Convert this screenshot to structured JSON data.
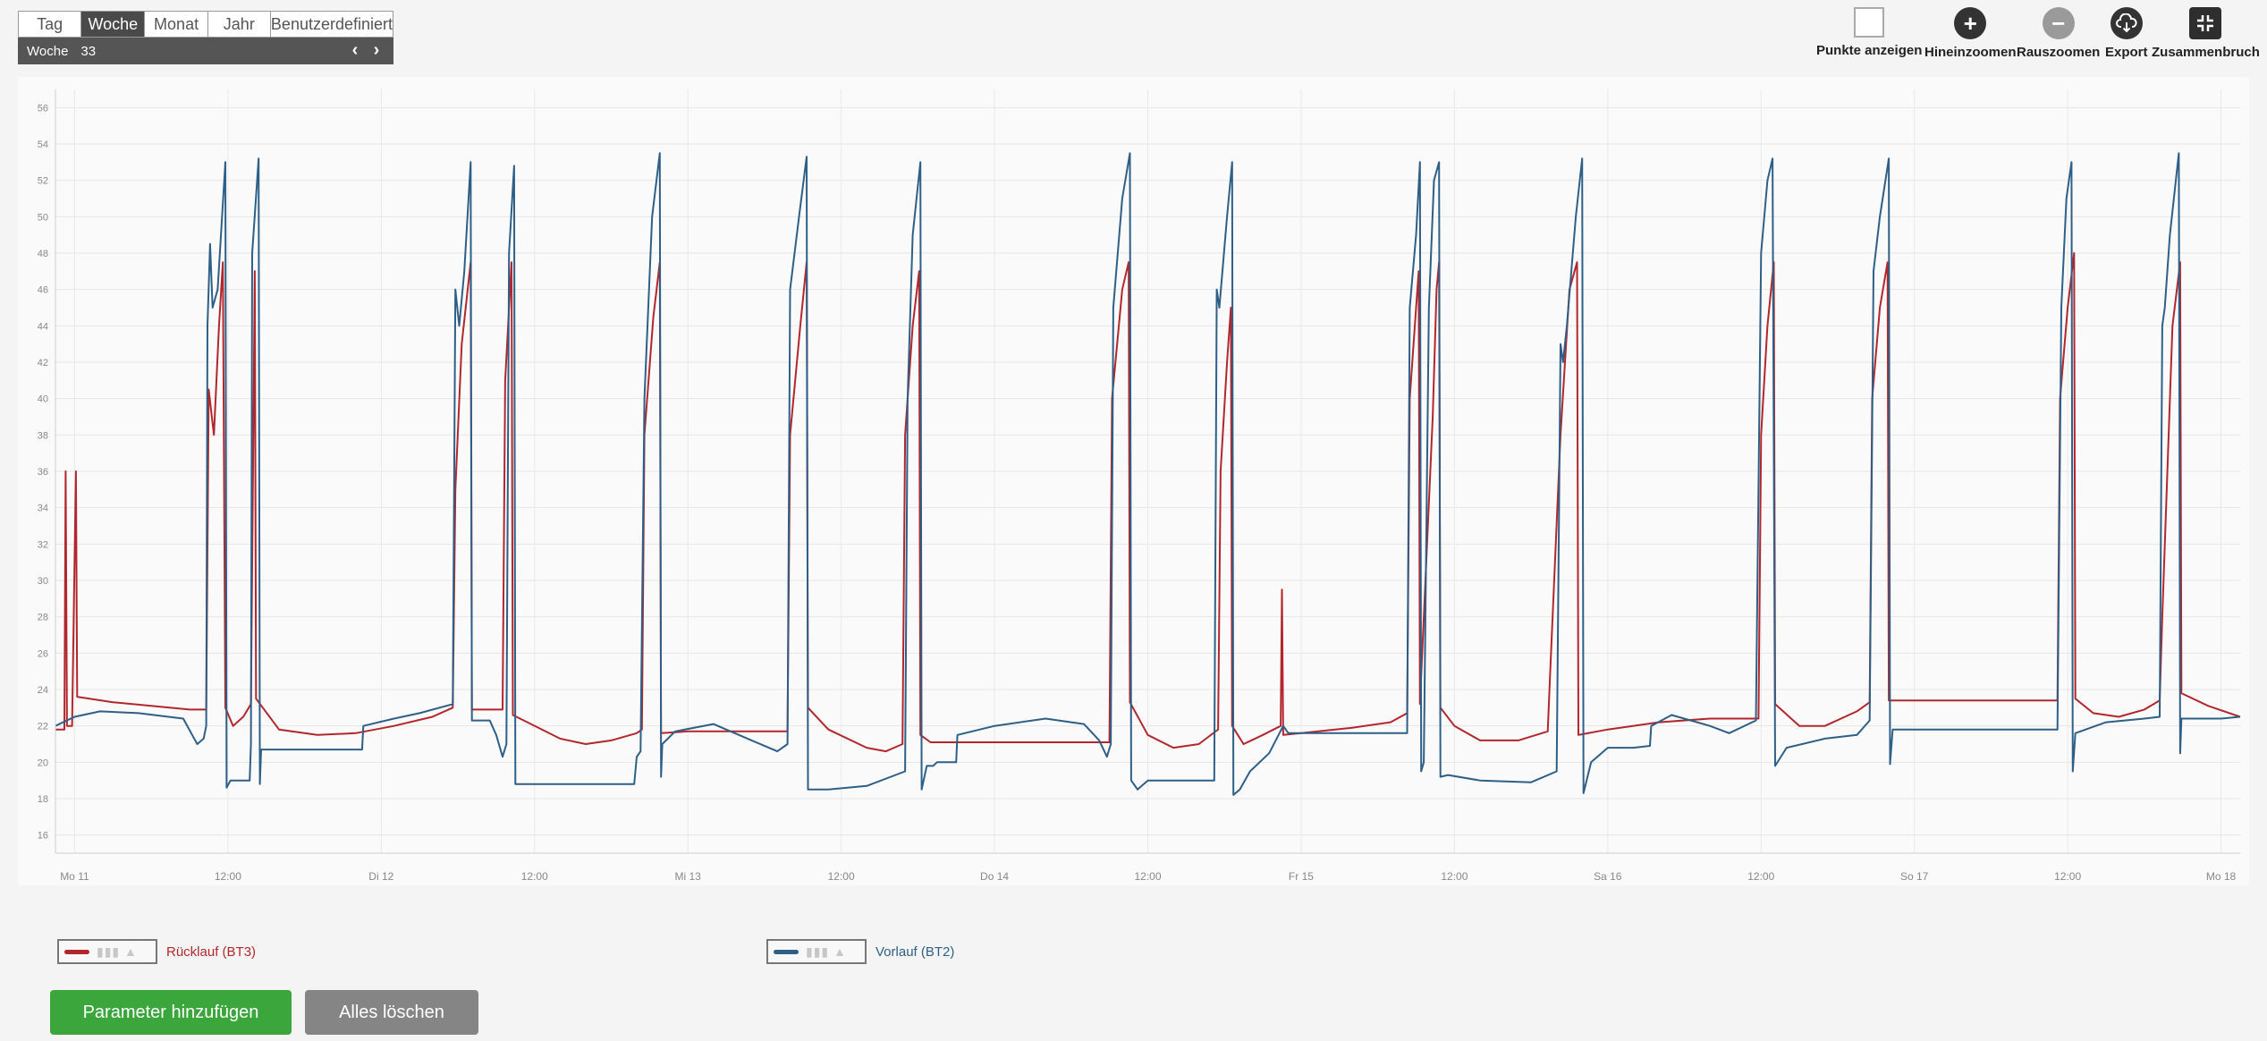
{
  "period": {
    "tabs": [
      "Tag",
      "Woche",
      "Monat",
      "Jahr",
      "Benutzerdefiniert"
    ],
    "active_tab": "Woche",
    "week_label": "Woche",
    "week_number": "33"
  },
  "toolbar": {
    "show_points": "Punkte anzeigen",
    "zoom_in": "Hineinzoomen",
    "zoom_out": "Rauszoomen",
    "export": "Export",
    "collapse": "Zusammenbruch"
  },
  "buttons": {
    "add_param": "Parameter hinzufügen",
    "clear_all": "Alles löschen"
  },
  "colors": {
    "ruecklauf": "#b2272d",
    "vorlauf": "#2e5f86",
    "active_tab": "#4a4a4a",
    "add_button": "#3aa63c",
    "clear_button": "#858585"
  },
  "chart_data": {
    "type": "line",
    "x_unit": "hours since Mo 11 00:00",
    "xlim": [
      -1.5,
      169.5
    ],
    "ylim": [
      15,
      57
    ],
    "yticks": [
      16,
      18,
      20,
      22,
      24,
      26,
      28,
      30,
      32,
      34,
      36,
      38,
      40,
      42,
      44,
      46,
      48,
      50,
      52,
      54,
      56
    ],
    "xticks": [
      {
        "x": 0,
        "label": "Mo 11"
      },
      {
        "x": 12,
        "label": "12:00"
      },
      {
        "x": 24,
        "label": "Di 12"
      },
      {
        "x": 36,
        "label": "12:00"
      },
      {
        "x": 48,
        "label": "Mi 13"
      },
      {
        "x": 60,
        "label": "12:00"
      },
      {
        "x": 72,
        "label": "Do 14"
      },
      {
        "x": 84,
        "label": "12:00"
      },
      {
        "x": 96,
        "label": "Fr 15"
      },
      {
        "x": 108,
        "label": "12:00"
      },
      {
        "x": 120,
        "label": "Sa 16"
      },
      {
        "x": 132,
        "label": "12:00"
      },
      {
        "x": 144,
        "label": "So 17"
      },
      {
        "x": 156,
        "label": "12:00"
      },
      {
        "x": 168,
        "label": "Mo 18"
      }
    ],
    "grid": true,
    "legend_position": "bottom",
    "series": [
      {
        "name": "Rücklauf (BT3)",
        "color": "#b2272d",
        "points": [
          [
            -1.5,
            21.8
          ],
          [
            -0.8,
            21.8
          ],
          [
            -0.7,
            36
          ],
          [
            -0.6,
            22
          ],
          [
            -0.2,
            22
          ],
          [
            0.1,
            36
          ],
          [
            0.2,
            23.6
          ],
          [
            3,
            23.3
          ],
          [
            6,
            23.1
          ],
          [
            9,
            22.9
          ],
          [
            10.3,
            22.9
          ],
          [
            10.5,
            40.5
          ],
          [
            10.9,
            38
          ],
          [
            11.3,
            44
          ],
          [
            11.6,
            47.5
          ],
          [
            11.8,
            23
          ],
          [
            12.4,
            22
          ],
          [
            13.2,
            22.5
          ],
          [
            13.8,
            23.2
          ],
          [
            14.1,
            47
          ],
          [
            14.2,
            23.5
          ],
          [
            16,
            21.8
          ],
          [
            19,
            21.5
          ],
          [
            22,
            21.6
          ],
          [
            25,
            22
          ],
          [
            28,
            22.5
          ],
          [
            29.6,
            23
          ],
          [
            29.8,
            35
          ],
          [
            30.3,
            43
          ],
          [
            31,
            47.5
          ],
          [
            31.1,
            22.9
          ],
          [
            33.5,
            22.9
          ],
          [
            33.7,
            41
          ],
          [
            34.2,
            47.5
          ],
          [
            34.3,
            22.6
          ],
          [
            38,
            21.3
          ],
          [
            40,
            21
          ],
          [
            42,
            21.2
          ],
          [
            44,
            21.6
          ],
          [
            44.4,
            21.8
          ],
          [
            44.6,
            38
          ],
          [
            45.3,
            44.5
          ],
          [
            45.8,
            47.5
          ],
          [
            45.9,
            21.6
          ],
          [
            48,
            21.7
          ],
          [
            52,
            21.7
          ],
          [
            55.8,
            21.7
          ],
          [
            56,
            38
          ],
          [
            56.8,
            44
          ],
          [
            57.3,
            47.5
          ],
          [
            57.4,
            23
          ],
          [
            59,
            21.8
          ],
          [
            62,
            20.8
          ],
          [
            63.5,
            20.6
          ],
          [
            64.8,
            21
          ],
          [
            65,
            38
          ],
          [
            65.6,
            44
          ],
          [
            66.1,
            47
          ],
          [
            66.2,
            21.5
          ],
          [
            67,
            21.1
          ],
          [
            75,
            21.1
          ],
          [
            81,
            21.1
          ],
          [
            81.2,
            40
          ],
          [
            82,
            46
          ],
          [
            82.5,
            47.5
          ],
          [
            82.6,
            23.3
          ],
          [
            84,
            21.5
          ],
          [
            86,
            20.8
          ],
          [
            88,
            21
          ],
          [
            89.5,
            21.8
          ],
          [
            89.7,
            36
          ],
          [
            90.2,
            42
          ],
          [
            90.5,
            45
          ],
          [
            90.6,
            22
          ],
          [
            91.5,
            21
          ],
          [
            93,
            21.5
          ],
          [
            94.4,
            22
          ],
          [
            94.5,
            29.5
          ],
          [
            94.6,
            21.5
          ],
          [
            96,
            21.6
          ],
          [
            100,
            21.9
          ],
          [
            103,
            22.2
          ],
          [
            104.3,
            22.7
          ],
          [
            104.5,
            40
          ],
          [
            105,
            45
          ],
          [
            105.2,
            47
          ],
          [
            105.3,
            23.2
          ],
          [
            106.3,
            39
          ],
          [
            106.6,
            46
          ],
          [
            106.8,
            47.5
          ],
          [
            106.9,
            23
          ],
          [
            108,
            22
          ],
          [
            110,
            21.2
          ],
          [
            113,
            21.2
          ],
          [
            115.3,
            21.7
          ],
          [
            115.5,
            25
          ],
          [
            116.3,
            38
          ],
          [
            117,
            46
          ],
          [
            117.6,
            47.5
          ],
          [
            117.7,
            21.5
          ],
          [
            120,
            21.8
          ],
          [
            124,
            22.2
          ],
          [
            128,
            22.4
          ],
          [
            131.8,
            22.4
          ],
          [
            132,
            38
          ],
          [
            132.5,
            44
          ],
          [
            133,
            47.5
          ],
          [
            133.1,
            23.2
          ],
          [
            135,
            22
          ],
          [
            137,
            22
          ],
          [
            139.5,
            22.8
          ],
          [
            140.5,
            23.3
          ],
          [
            140.7,
            40
          ],
          [
            141.3,
            45
          ],
          [
            141.9,
            47.5
          ],
          [
            142,
            23.4
          ],
          [
            148,
            23.4
          ],
          [
            155.2,
            23.4
          ],
          [
            155.4,
            40
          ],
          [
            156,
            45
          ],
          [
            156.5,
            48
          ],
          [
            156.6,
            23.5
          ],
          [
            158,
            22.7
          ],
          [
            160,
            22.5
          ],
          [
            162,
            22.9
          ],
          [
            163.2,
            23.4
          ],
          [
            163.4,
            28
          ],
          [
            164.2,
            44
          ],
          [
            164.8,
            47.5
          ],
          [
            164.9,
            23.8
          ],
          [
            167,
            23.1
          ],
          [
            169.5,
            22.5
          ]
        ]
      },
      {
        "name": "Vorlauf (BT2)",
        "color": "#2e5f86",
        "points": [
          [
            -1.5,
            22
          ],
          [
            0,
            22.5
          ],
          [
            2,
            22.8
          ],
          [
            5,
            22.7
          ],
          [
            8.5,
            22.4
          ],
          [
            9.2,
            21.5
          ],
          [
            9.6,
            21
          ],
          [
            10.1,
            21.3
          ],
          [
            10.3,
            22
          ],
          [
            10.4,
            44
          ],
          [
            10.6,
            48.5
          ],
          [
            10.8,
            45
          ],
          [
            11.2,
            46
          ],
          [
            11.8,
            53
          ],
          [
            11.9,
            18.6
          ],
          [
            12.2,
            19
          ],
          [
            13.7,
            19
          ],
          [
            13.8,
            21
          ],
          [
            13.9,
            48
          ],
          [
            14.4,
            53.2
          ],
          [
            14.5,
            18.8
          ],
          [
            14.6,
            20.7
          ],
          [
            20,
            20.7
          ],
          [
            22.5,
            20.7
          ],
          [
            22.6,
            22
          ],
          [
            25,
            22.4
          ],
          [
            27,
            22.7
          ],
          [
            29.6,
            23.2
          ],
          [
            29.8,
            46
          ],
          [
            30.1,
            44
          ],
          [
            30.5,
            47
          ],
          [
            31,
            53
          ],
          [
            31.1,
            22.3
          ],
          [
            32.5,
            22.3
          ],
          [
            33,
            21.5
          ],
          [
            33.5,
            20.3
          ],
          [
            33.8,
            21
          ],
          [
            34,
            48
          ],
          [
            34.4,
            52.8
          ],
          [
            34.5,
            18.8
          ],
          [
            35,
            18.8
          ],
          [
            41,
            18.8
          ],
          [
            43.8,
            18.8
          ],
          [
            44,
            20.3
          ],
          [
            44.3,
            20.6
          ],
          [
            44.6,
            40
          ],
          [
            45.2,
            50
          ],
          [
            45.8,
            53.5
          ],
          [
            45.9,
            19.2
          ],
          [
            46,
            21
          ],
          [
            47,
            21.7
          ],
          [
            50,
            22.1
          ],
          [
            53,
            21.2
          ],
          [
            55,
            20.6
          ],
          [
            55.8,
            21
          ],
          [
            56,
            46
          ],
          [
            56.7,
            50
          ],
          [
            57.3,
            53.3
          ],
          [
            57.4,
            18.5
          ],
          [
            59,
            18.5
          ],
          [
            62,
            18.7
          ],
          [
            65,
            19.5
          ],
          [
            65.2,
            40
          ],
          [
            65.6,
            49
          ],
          [
            66.2,
            53
          ],
          [
            66.3,
            18.5
          ],
          [
            66.7,
            19.8
          ],
          [
            67.2,
            19.8
          ],
          [
            67.5,
            20
          ],
          [
            69,
            20
          ],
          [
            69.1,
            21.5
          ],
          [
            72,
            22
          ],
          [
            76,
            22.4
          ],
          [
            79,
            22.1
          ],
          [
            80.2,
            21.2
          ],
          [
            80.8,
            20.3
          ],
          [
            81.1,
            21
          ],
          [
            81.3,
            45
          ],
          [
            82,
            51
          ],
          [
            82.6,
            53.5
          ],
          [
            82.7,
            19
          ],
          [
            83.2,
            18.5
          ],
          [
            84,
            19
          ],
          [
            87,
            19
          ],
          [
            89.2,
            19
          ],
          [
            89.4,
            46
          ],
          [
            89.6,
            45
          ],
          [
            90.2,
            50
          ],
          [
            90.6,
            53
          ],
          [
            90.7,
            18.2
          ],
          [
            91.2,
            18.5
          ],
          [
            92,
            19.5
          ],
          [
            93.5,
            20.5
          ],
          [
            94.6,
            22
          ],
          [
            95,
            21.6
          ],
          [
            99,
            21.6
          ],
          [
            104.3,
            21.6
          ],
          [
            104.5,
            45
          ],
          [
            105,
            49
          ],
          [
            105.3,
            53
          ],
          [
            105.4,
            19.5
          ],
          [
            105.6,
            20
          ],
          [
            106,
            45
          ],
          [
            106.4,
            52
          ],
          [
            106.8,
            53
          ],
          [
            106.9,
            19.2
          ],
          [
            107.5,
            19.3
          ],
          [
            110,
            19
          ],
          [
            114,
            18.9
          ],
          [
            116,
            19.5
          ],
          [
            116.3,
            43
          ],
          [
            116.5,
            42
          ],
          [
            116.8,
            44
          ],
          [
            117.5,
            50
          ],
          [
            118,
            53.2
          ],
          [
            118.1,
            18.3
          ],
          [
            118.7,
            20
          ],
          [
            120,
            20.8
          ],
          [
            122,
            20.8
          ],
          [
            123.3,
            20.9
          ],
          [
            123.4,
            22
          ],
          [
            125,
            22.6
          ],
          [
            128,
            22
          ],
          [
            129.5,
            21.6
          ],
          [
            131.6,
            22.3
          ],
          [
            132,
            48
          ],
          [
            132.5,
            52
          ],
          [
            132.9,
            53.2
          ],
          [
            133.1,
            19.8
          ],
          [
            134,
            20.8
          ],
          [
            137,
            21.3
          ],
          [
            139.5,
            21.5
          ],
          [
            140.5,
            22.3
          ],
          [
            140.8,
            47
          ],
          [
            141.3,
            50
          ],
          [
            142,
            53.2
          ],
          [
            142.1,
            19.9
          ],
          [
            142.3,
            21.8
          ],
          [
            148,
            21.8
          ],
          [
            155.2,
            21.8
          ],
          [
            155.5,
            45
          ],
          [
            155.9,
            51
          ],
          [
            156.3,
            53
          ],
          [
            156.4,
            19.5
          ],
          [
            156.6,
            21.6
          ],
          [
            159,
            22.2
          ],
          [
            162,
            22.4
          ],
          [
            163.2,
            22.5
          ],
          [
            163.4,
            44
          ],
          [
            163.6,
            45
          ],
          [
            164,
            49
          ],
          [
            164.7,
            53.5
          ],
          [
            164.8,
            20.5
          ],
          [
            164.9,
            22.4
          ],
          [
            168,
            22.4
          ],
          [
            169.5,
            22.5
          ]
        ]
      }
    ]
  },
  "legend": [
    {
      "label": "Rücklauf (BT3)",
      "color": "#b2272d"
    },
    {
      "label": "Vorlauf (BT2)",
      "color": "#2e5f86"
    }
  ]
}
